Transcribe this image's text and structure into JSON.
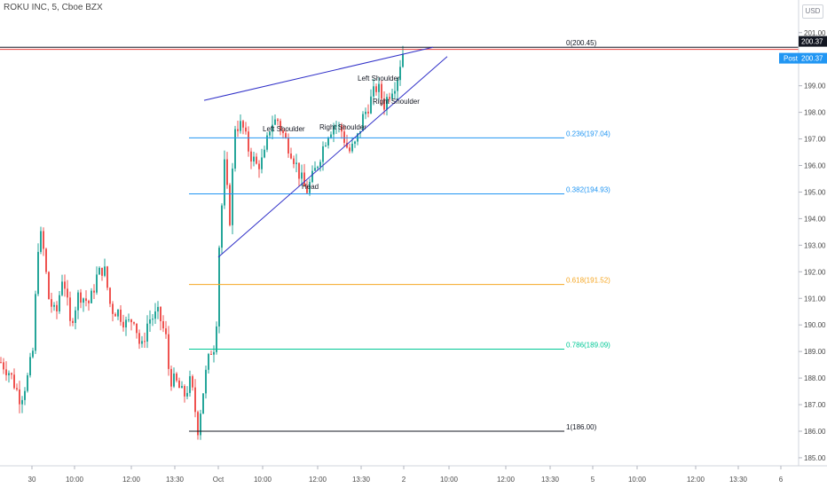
{
  "header": {
    "title": "ROKU INC, 5, Cboe BZX",
    "currency": "USD"
  },
  "colors": {
    "up": "#26a69a",
    "down": "#ef5350",
    "wedge": "#3030c8",
    "fib_blue": "#2196f3",
    "fib_orange": "#f5a623",
    "fib_teal": "#00c896",
    "fib_black": "#131722",
    "price_label": "#2196f3",
    "red_line": "#e53935"
  },
  "chart_data": {
    "type": "candlestick",
    "title": "ROKU INC, 5, Cboe BZX",
    "ylim": [
      184.5,
      201.8
    ],
    "y_ticks": [
      "185.00",
      "186.00",
      "187.00",
      "188.00",
      "189.00",
      "190.00",
      "191.00",
      "192.00",
      "193.00",
      "194.00",
      "195.00",
      "196.00",
      "197.00",
      "198.00",
      "199.00",
      "200.00",
      "201.00"
    ],
    "x_ticks": [
      "30",
      "10:00",
      "12:00",
      "13:30",
      "Oct",
      "10:00",
      "12:00",
      "13:30",
      "2",
      "10:00",
      "12:00",
      "13:30",
      "5",
      "10:00",
      "12:00",
      "13:30",
      "6"
    ],
    "current_price": {
      "value": 200.37,
      "label": "200.37",
      "post_label": "Post",
      "post_value": "200.37"
    },
    "fibonacci": [
      {
        "label": "0(200.45)",
        "value": 200.45
      },
      {
        "label": "0.236(197.04)",
        "value": 197.04
      },
      {
        "label": "0.382(194.93)",
        "value": 194.93
      },
      {
        "label": "0.618(191.52)",
        "value": 191.52
      },
      {
        "label": "0.786(189.09)",
        "value": 189.09
      },
      {
        "label": "1(186.00)",
        "value": 186.0
      }
    ],
    "annotations": [
      "Left Shoulder",
      "Right Shoulder",
      "Head",
      "Left Shoulder",
      "Right Shoulder"
    ]
  }
}
